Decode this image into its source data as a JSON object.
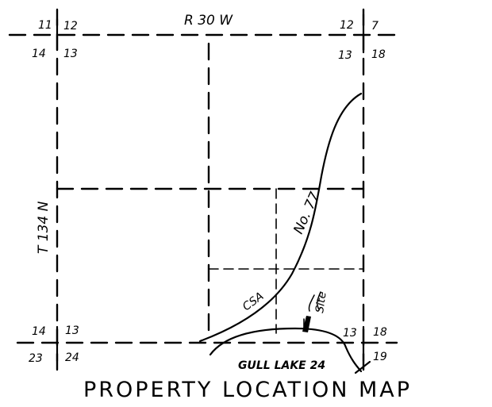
{
  "map": {
    "range_label": "R 30 W",
    "township_label": "T 134 N",
    "title": "PROPERTY LOCATION MAP",
    "road_label": "No. 77",
    "road_label_lower": "CSA",
    "site_label": "Site",
    "lake_label": "GULL LAKE 24",
    "section_numbers": {
      "top_left": [
        "11",
        "12",
        "14",
        "13"
      ],
      "top_right": [
        "12",
        "7",
        "13",
        "18"
      ],
      "bottom_left": [
        "14",
        "13",
        "23",
        "24"
      ],
      "bottom_right": [
        "13",
        "18",
        "19"
      ]
    },
    "colors": {
      "ink": "#000000",
      "paper": "#ffffff"
    }
  }
}
